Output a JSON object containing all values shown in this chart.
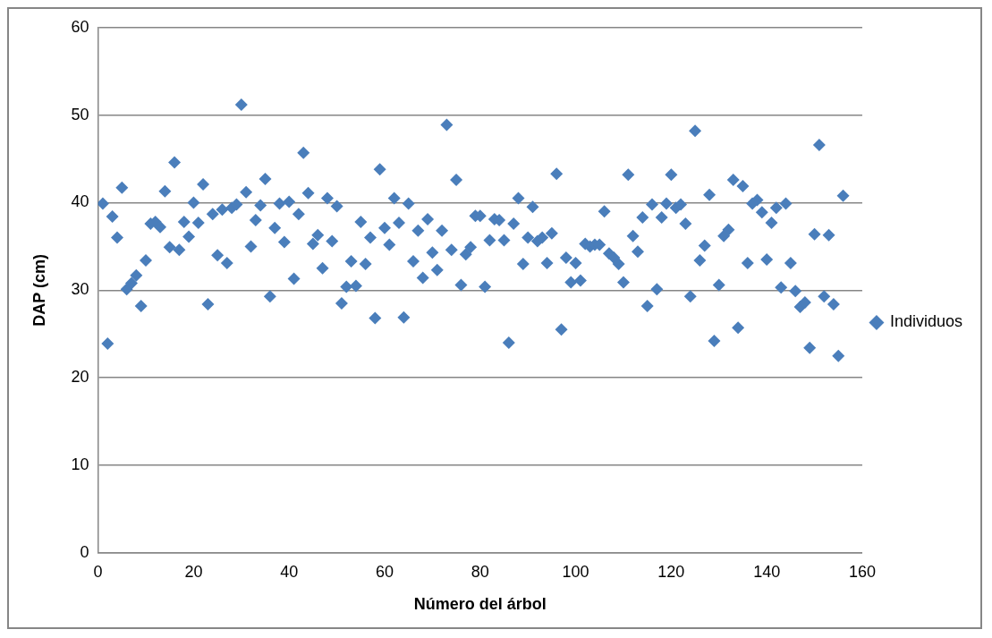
{
  "chart_data": {
    "type": "scatter",
    "xlabel": "Número del árbol",
    "ylabel": "DAP (cm)",
    "x": [
      1,
      2,
      3,
      4,
      5,
      6,
      7,
      8,
      9,
      10,
      11,
      12,
      13,
      14,
      15,
      16,
      17,
      18,
      19,
      20,
      21,
      22,
      23,
      24,
      25,
      26,
      27,
      28,
      29,
      30,
      31,
      32,
      33,
      34,
      35,
      36,
      37,
      38,
      39,
      40,
      41,
      42,
      43,
      44,
      45,
      46,
      47,
      48,
      49,
      50,
      51,
      52,
      53,
      54,
      55,
      56,
      57,
      58,
      59,
      60,
      61,
      62,
      63,
      64,
      65,
      66,
      67,
      68,
      69,
      70,
      71,
      72,
      73,
      74,
      75,
      76,
      77,
      78,
      79,
      80,
      81,
      82,
      83,
      84,
      85,
      86,
      87,
      88,
      89,
      90,
      91,
      92,
      93,
      94,
      95,
      96,
      97,
      98,
      99,
      100,
      101,
      102,
      103,
      104,
      105,
      106,
      107,
      108,
      109,
      110,
      111,
      112,
      113,
      114,
      115,
      116,
      117,
      118,
      119,
      120,
      121,
      122,
      123,
      124,
      125,
      126,
      127,
      128,
      129,
      130,
      131,
      132,
      133,
      134,
      135,
      136,
      137,
      138,
      139,
      140,
      141,
      142,
      143,
      144,
      145,
      146,
      147,
      148,
      149,
      150,
      151,
      152,
      153,
      154,
      155,
      156
    ],
    "series": [
      {
        "name": "Individuos",
        "color": "#4a7ebb",
        "values": [
          39.9,
          23.9,
          38.4,
          36.0,
          41.7,
          30.1,
          30.8,
          31.7,
          28.2,
          33.4,
          37.6,
          37.8,
          37.2,
          41.3,
          34.9,
          44.6,
          34.6,
          37.8,
          36.1,
          40.0,
          37.7,
          42.1,
          28.4,
          38.7,
          34.0,
          39.2,
          33.1,
          39.4,
          39.8,
          51.2,
          41.2,
          35.0,
          38.0,
          39.7,
          42.7,
          29.3,
          37.1,
          39.9,
          35.5,
          40.1,
          31.3,
          38.7,
          45.7,
          41.1,
          35.3,
          36.3,
          32.5,
          40.5,
          35.6,
          39.6,
          28.5,
          30.4,
          33.3,
          30.5,
          37.8,
          33.0,
          36.0,
          26.8,
          43.8,
          37.1,
          35.2,
          40.5,
          37.7,
          26.9,
          39.9,
          33.3,
          36.8,
          31.4,
          38.1,
          34.3,
          32.3,
          36.8,
          48.9,
          34.6,
          42.6,
          30.6,
          34.1,
          34.9,
          38.5,
          38.5,
          30.4,
          35.7,
          38.1,
          38.0,
          35.7,
          24.0,
          37.6,
          40.5,
          33.0,
          36.0,
          39.5,
          35.6,
          36.0,
          33.1,
          36.5,
          43.3,
          25.5,
          33.7,
          30.9,
          33.1,
          31.1,
          35.3,
          35.0,
          35.2,
          35.2,
          39.0,
          34.2,
          33.7,
          33.0,
          30.9,
          43.2,
          36.2,
          34.4,
          38.3,
          28.2,
          39.8,
          30.1,
          38.3,
          39.9,
          43.2,
          39.4,
          39.8,
          37.6,
          29.3,
          48.2,
          33.4,
          35.1,
          40.9,
          24.2,
          30.6,
          36.2,
          36.9,
          42.6,
          25.7,
          41.9,
          33.1,
          39.9,
          40.3,
          38.9,
          33.5,
          37.7,
          39.4,
          30.3,
          39.9,
          33.1,
          29.9,
          28.1,
          28.6,
          23.4,
          36.4,
          46.6,
          29.3,
          36.3,
          28.4,
          22.5,
          40.8
        ]
      }
    ],
    "xlim": [
      0,
      160
    ],
    "xticks": [
      0,
      20,
      40,
      60,
      80,
      100,
      120,
      140,
      160
    ],
    "ylim": [
      0,
      60
    ],
    "yticks": [
      0,
      10,
      20,
      30,
      40,
      50,
      60
    ],
    "grid": "y",
    "legend": "right",
    "marker": "diamond"
  }
}
